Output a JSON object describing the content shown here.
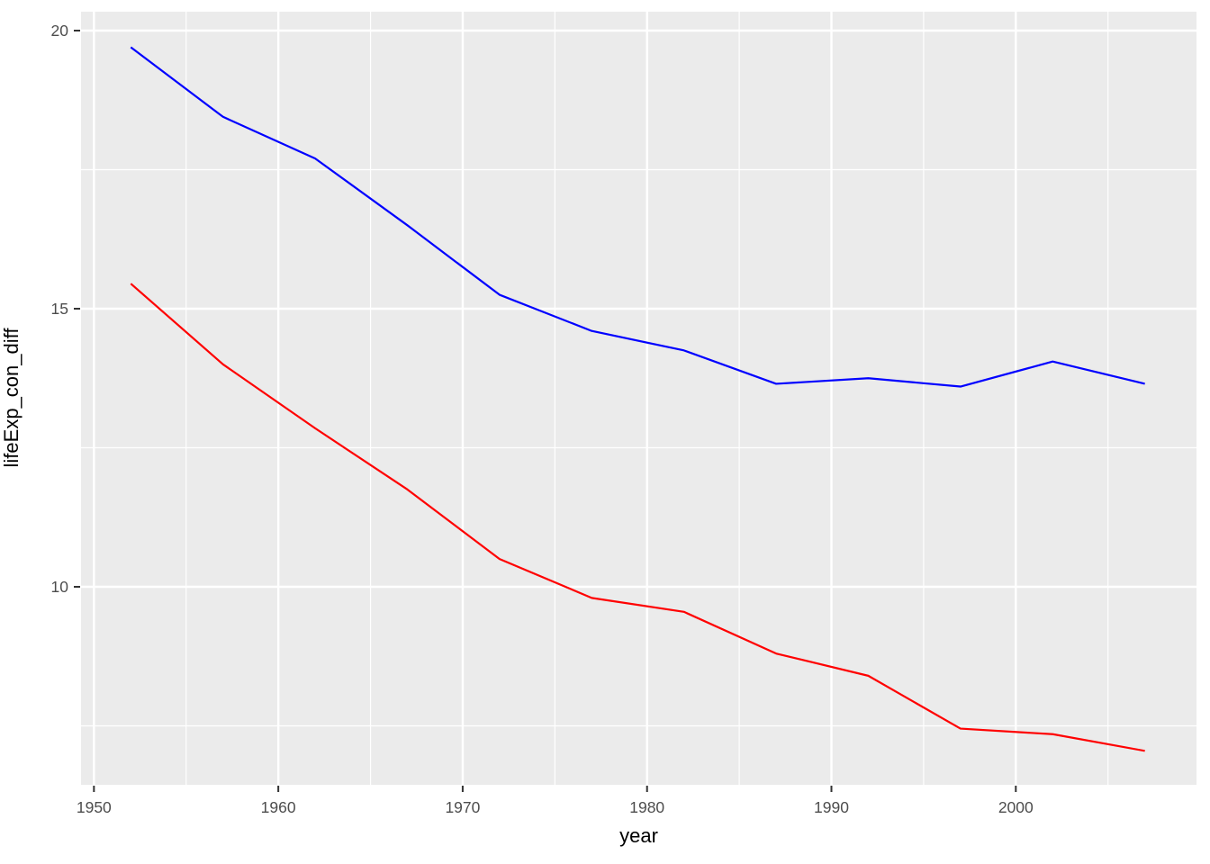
{
  "chart_data": {
    "type": "line",
    "title": "",
    "xlabel": "year",
    "ylabel": "lifeExp_con_diff",
    "x": [
      1952,
      1957,
      1962,
      1967,
      1972,
      1977,
      1982,
      1987,
      1992,
      1997,
      2002,
      2007
    ],
    "series": [
      {
        "name": "blue",
        "color": "#0000FF",
        "values": [
          19.7,
          18.45,
          17.7,
          16.5,
          15.25,
          14.6,
          14.25,
          13.65,
          13.75,
          13.6,
          14.05,
          13.65
        ]
      },
      {
        "name": "red",
        "color": "#FF0000",
        "values": [
          15.45,
          14.0,
          12.85,
          11.75,
          10.5,
          9.8,
          9.55,
          8.8,
          8.4,
          7.45,
          7.35,
          7.05
        ]
      }
    ],
    "x_ticks": {
      "major": [
        1950,
        1960,
        1970,
        1980,
        1990,
        2000
      ],
      "labels": [
        "1950",
        "1960",
        "1970",
        "1980",
        "1990",
        "2000"
      ],
      "minor": [
        1955,
        1965,
        1975,
        1985,
        1995,
        2005
      ]
    },
    "y_ticks": {
      "major": [
        10,
        15,
        20
      ],
      "labels": [
        "10",
        "15",
        "20"
      ],
      "minor": [
        7.5,
        12.5,
        17.5
      ]
    },
    "xlim": [
      1949.3,
      2009.8
    ],
    "ylim": [
      6.44,
      20.34
    ],
    "grid": "major+minor",
    "legend": "none",
    "colors": {
      "panel_bg": "#EBEBEB",
      "grid": "#FFFFFF",
      "tick_mark": "#333333",
      "tick_label": "#4D4D4D",
      "axis_title": "#000000",
      "figure_bg": "#FFFFFF"
    }
  }
}
